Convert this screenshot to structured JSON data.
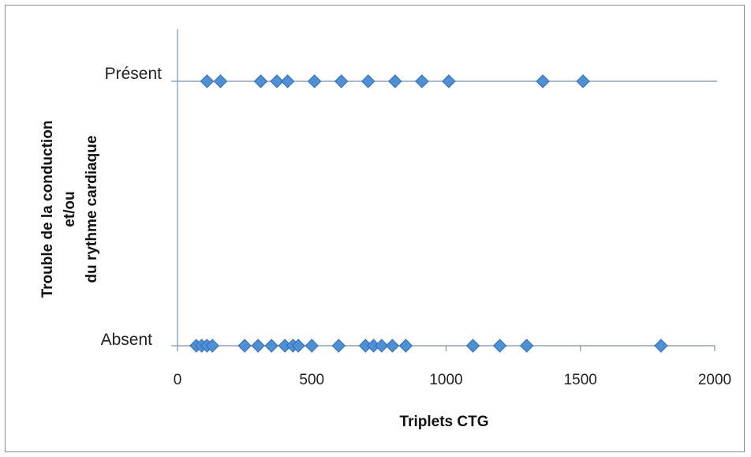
{
  "chart_data": {
    "type": "scatter",
    "title": "",
    "xlabel": "Triplets CTG",
    "ylabel_lines": [
      "Trouble de la conduction",
      "et/ou",
      "du rythme cardiaque"
    ],
    "xlim": [
      0,
      2000
    ],
    "xticks": [
      "0",
      "500",
      "1000",
      "1500",
      "2000"
    ],
    "categories": [
      "Absent",
      "Présent"
    ],
    "grid": false,
    "legend": "none",
    "marker": "diamond",
    "color": "#4f8fd4",
    "series": [
      {
        "category": "Présent",
        "x": [
          110,
          160,
          310,
          370,
          410,
          510,
          610,
          710,
          810,
          910,
          1010,
          1360,
          1510
        ]
      },
      {
        "category": "Absent",
        "x": [
          70,
          90,
          110,
          130,
          250,
          300,
          350,
          400,
          430,
          450,
          500,
          600,
          700,
          730,
          760,
          800,
          850,
          1100,
          1200,
          1300,
          1800
        ]
      }
    ]
  }
}
